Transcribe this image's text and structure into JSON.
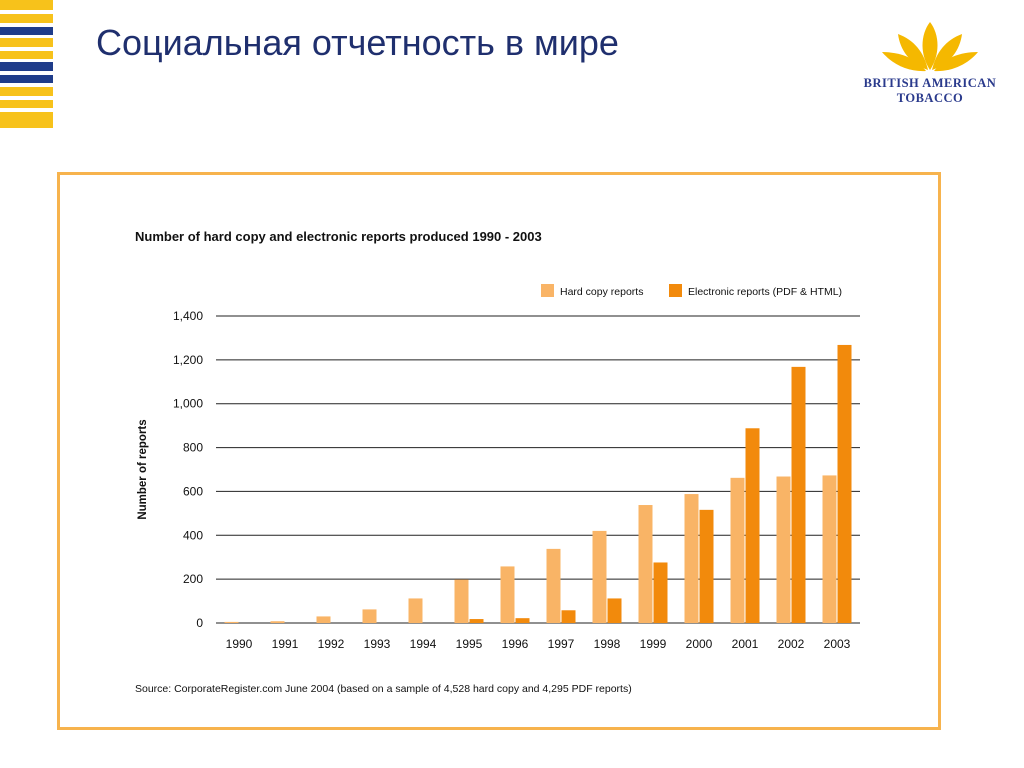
{
  "slide": {
    "title": "Социальная отчетность в мире"
  },
  "logo": {
    "line1": "BRITISH AMERICAN",
    "line2": "TOBACCO"
  },
  "colors": {
    "title": "#1f2f6e",
    "frame": "#f7b34d",
    "hard_copy": "#f9b466",
    "electronic": "#f28a0c",
    "stripe_yellow": "#f7c21b",
    "stripe_blue": "#1f3c8a"
  },
  "chart_data": {
    "type": "bar",
    "title": "Number of hard copy and electronic reports produced 1990 - 2003",
    "xlabel": "",
    "ylabel": "Number of reports",
    "ylim": [
      0,
      1400
    ],
    "yticks": [
      "0",
      "200",
      "400",
      "600",
      "800",
      "1,000",
      "1,200",
      "1,400"
    ],
    "grid": true,
    "legend_position": "top-right",
    "categories": [
      "1990",
      "1991",
      "1992",
      "1993",
      "1994",
      "1995",
      "1996",
      "1997",
      "1998",
      "1999",
      "2000",
      "2001",
      "2002",
      "2003"
    ],
    "series": [
      {
        "name": "Hard copy reports",
        "values": [
          5,
          8,
          30,
          62,
          112,
          198,
          258,
          338,
          420,
          538,
          588,
          662,
          668,
          673
        ]
      },
      {
        "name": "Electronic reports (PDF & HTML)",
        "values": [
          0,
          0,
          0,
          0,
          0,
          18,
          22,
          58,
          112,
          276,
          516,
          888,
          1168,
          1268
        ]
      }
    ],
    "source": "Source: CorporateRegister.com June 2004 (based on a sample of 4,528 hard copy and 4,295 PDF reports)"
  }
}
